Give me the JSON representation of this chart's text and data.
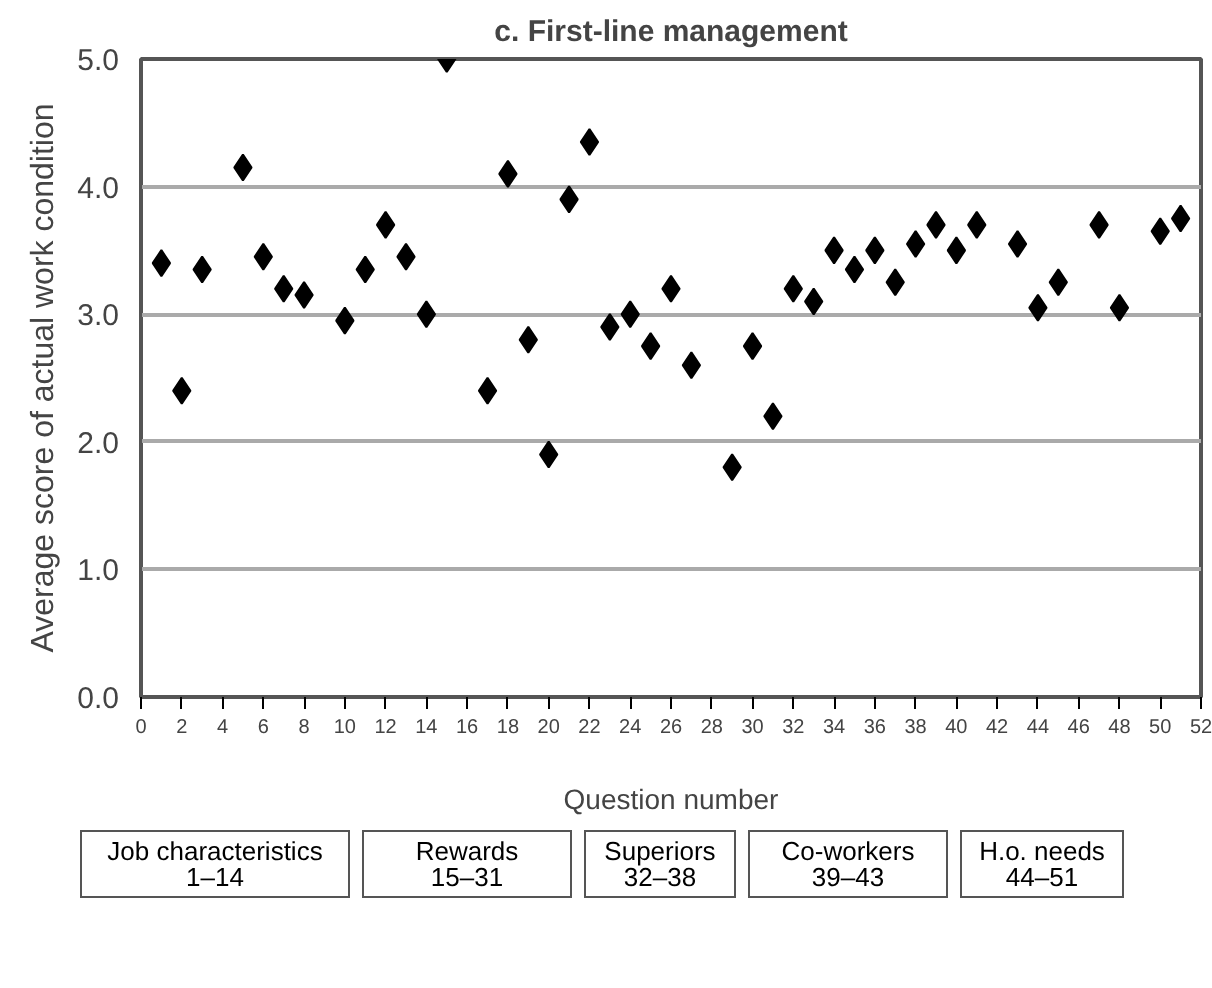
{
  "chart_data": {
    "type": "scatter",
    "title": "c. First-line management",
    "xlabel": "Question number",
    "ylabel": "Average score of actual work condition",
    "x": [
      1,
      2,
      3,
      5,
      6,
      7,
      8,
      10,
      11,
      12,
      13,
      14,
      15,
      17,
      18,
      19,
      20,
      21,
      22,
      23,
      24,
      25,
      26,
      27,
      29,
      30,
      31,
      32,
      33,
      34,
      35,
      36,
      37,
      38,
      39,
      40,
      41,
      43,
      44,
      45,
      47,
      48,
      50,
      51
    ],
    "values": [
      3.4,
      2.4,
      3.35,
      4.15,
      3.45,
      3.2,
      3.15,
      2.95,
      3.35,
      3.7,
      3.45,
      3.0,
      5.0,
      2.4,
      4.1,
      2.8,
      1.9,
      3.9,
      4.35,
      2.9,
      3.0,
      2.75,
      3.2,
      2.6,
      1.8,
      2.75,
      2.2,
      3.2,
      3.1,
      3.5,
      3.35,
      3.5,
      3.25,
      3.55,
      3.7,
      3.5,
      3.7,
      3.55,
      3.05,
      3.25,
      3.7,
      3.05,
      3.65,
      3.75
    ],
    "color": "#000000",
    "marker": "diamond",
    "grid": "y",
    "xlim": [
      0,
      52
    ],
    "xticks": [
      0,
      2,
      4,
      6,
      8,
      10,
      12,
      14,
      16,
      18,
      20,
      22,
      24,
      26,
      28,
      30,
      32,
      34,
      36,
      38,
      40,
      42,
      44,
      46,
      48,
      50,
      52
    ],
    "ylim": [
      0,
      5
    ],
    "yticks": [
      {
        "value": 0,
        "label": "0.0"
      },
      {
        "value": 1,
        "label": "1.0"
      },
      {
        "value": 2,
        "label": "2.0"
      },
      {
        "value": 3,
        "label": "3.0"
      },
      {
        "value": 4,
        "label": "4.0"
      },
      {
        "value": 5,
        "label": "5.0"
      }
    ],
    "annotations": [
      "Job characteristics\n1–14",
      "Rewards\n15–31",
      "Superiors\n32–38",
      "Co-workers\n39–43",
      "H.o. needs\n44–51"
    ]
  }
}
